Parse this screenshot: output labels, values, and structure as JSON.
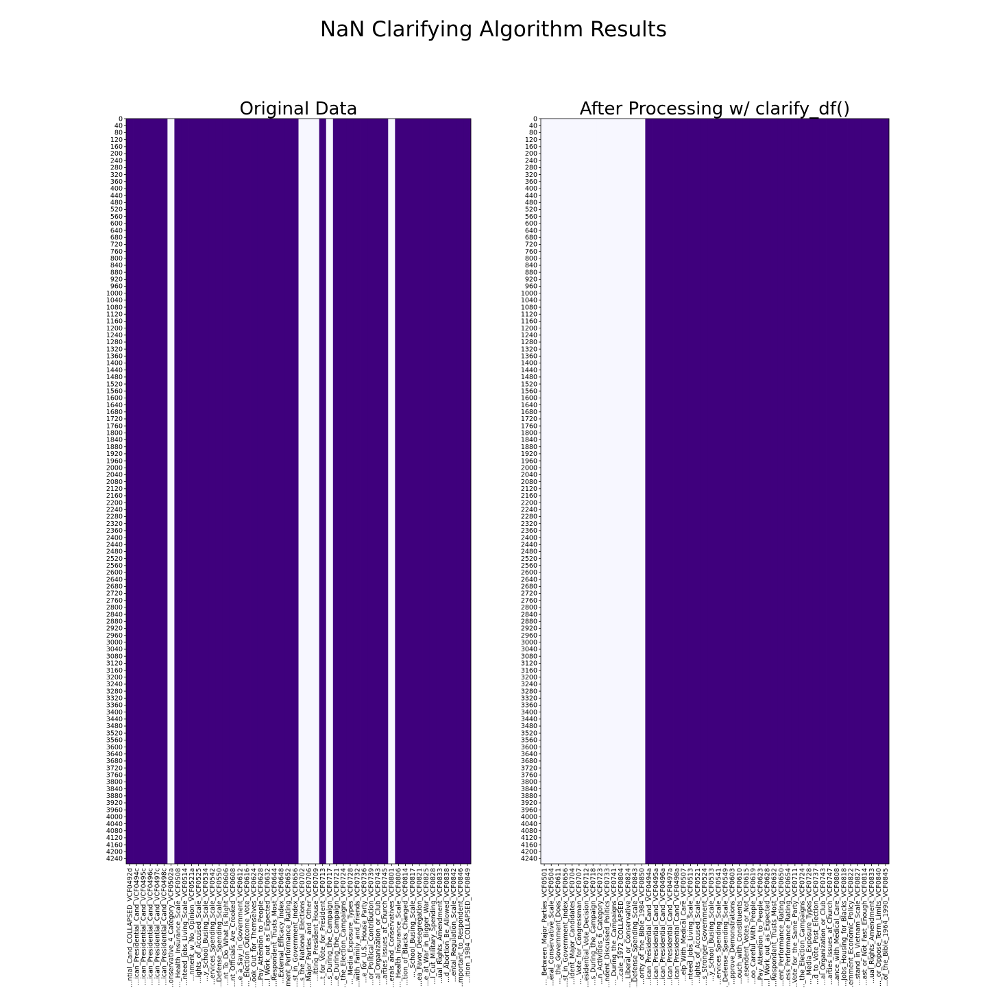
{
  "figure": {
    "title": "NaN Clarifying Algorithm Results"
  },
  "colors": {
    "missing": "#f7f7ff",
    "present": "#3f007d",
    "frame": "#000000"
  },
  "chart_data": [
    {
      "type": "heatmap",
      "title": "Original Data",
      "ylim": [
        0,
        4270
      ],
      "y_ticks": [
        0,
        40,
        80,
        120,
        160,
        200,
        240,
        280,
        320,
        360,
        400,
        440,
        480,
        520,
        560,
        600,
        640,
        680,
        720,
        760,
        800,
        840,
        880,
        920,
        960,
        1000,
        1040,
        1080,
        1120,
        1160,
        1200,
        1240,
        1280,
        1320,
        1360,
        1400,
        1440,
        1480,
        1520,
        1560,
        1600,
        1640,
        1680,
        1720,
        1760,
        1800,
        1840,
        1880,
        1920,
        1960,
        2000,
        2040,
        2080,
        2120,
        2160,
        2200,
        2240,
        2280,
        2320,
        2360,
        2400,
        2440,
        2480,
        2520,
        2560,
        2600,
        2640,
        2680,
        2720,
        2760,
        2800,
        2840,
        2880,
        2920,
        2960,
        3000,
        3040,
        3080,
        3120,
        3160,
        3200,
        3240,
        3280,
        3320,
        3360,
        3400,
        3440,
        3480,
        3520,
        3560,
        3600,
        3640,
        3680,
        3720,
        3760,
        3800,
        3840,
        3880,
        3920,
        3960,
        4000,
        4040,
        4080,
        4120,
        4160,
        4200,
        4240
      ],
      "x_labels": [
        "...ntial_Cand_COLLAPSED_VCF0492d",
        "...ican_Presidential_Cand_VCF0494c",
        "...ican_Presidential_Cand_VCF0495c",
        "...ican_Presidential_Cand_VCF0496c",
        "...ican_Presidential_Cand_VCF0497c",
        "...ican_Presidential_Cand_VCF0498c",
        "...onservative_4_Category_VCF0502a",
        "..._Health_Insurance_Scale_VCF0508",
        "...nteed_Jobs_Living_Scale_VCF0514",
        "...nment_w_No_Opinion_VCF0521a",
        "...ights_of_Accused_Scale_VCF0525",
        "...y_School_Busing_Scale_VCF0534",
        "...ervices_Spending_Scale_VCF0542",
        "...Defense_Spending_Scale_VCF0550",
        "...nt_To_Do_What_Is_Right_VCF0606",
        "...nt_Officials_Are_Crooked_VCF0608",
        "...e_a_Say_in_Government_VCF0612",
        "..._Election_Outcome_Vote_VCF0616",
        "...ook_Out_for_Themselves_VCF0624",
        "...Pay_Attention_to_People_VCF0628",
        "...l_Work_out_as_Expected_VCF0632",
        "...Respondent_Trusts_Most_VCF0644",
        "...External_Efficacy_Index_VCF0648",
        "...ment_Performance_Rating_VCF0652",
        "...st_in_Government_Index_VCF0656",
        "...s_the_National_Elections_VCF0702",
        "...Major_Parties_and_Other_VCF0706",
        "...itting_President_House_VCF0709",
        "...t_for_Vote_for_President_VCF0713",
        "...s_During_the_Campaign_VCF0717",
        "...e_During_the_Campaign_VCF0721",
        "..._the_Election_Campaigns_VCF0724",
        "..._Media_Exposure_Types_VCF0728",
        "...with_Family_and_Friends_VCF0732",
        "...e_for_U.S._House_Party_VCF0736",
        "...or_Political_Contribution_VCF0739",
        "...al_Organization_or_Club_VCF0743",
        "...arties_Issues_at_Church_VCF0745",
        "...erals_and_Conservatives_VCF0801",
        "..._Health_Insurance_Scale_VCF0806",
        "...tion_of_Blacks_Changed_VCF0814",
        "..._School_Busing_Scale_VCF0817",
        "...ea_Favor_Desegregation_VCF0821",
        "...e_at_War_in_Bigger_War_VCF0825",
        "...l_Cut_Military_Spending_VCF0828",
        "...ual_Rights_Amendment_VCF0833",
        "...d_Abortion_Be_Allowed_VCF0838",
        "...ental_Regulation_Scale_VCF0842",
        "...mportant_to_Respondent_VCF0846",
        "...ition_1984_COLLAPSED_VCF0849"
      ],
      "present_columns": [
        1,
        1,
        1,
        1,
        1,
        1,
        0,
        1,
        1,
        1,
        1,
        1,
        1,
        1,
        1,
        1,
        1,
        1,
        1,
        1,
        1,
        1,
        1,
        1,
        1,
        0,
        0,
        0,
        1,
        0,
        1,
        1,
        1,
        1,
        1,
        1,
        1,
        1,
        0,
        1,
        1,
        1,
        1,
        1,
        1,
        1,
        1,
        1,
        1,
        1
      ]
    },
    {
      "type": "heatmap",
      "title": "After Processing w/ clarify_df()",
      "ylim": [
        0,
        4270
      ],
      "y_ticks": [
        0,
        40,
        80,
        120,
        160,
        200,
        240,
        280,
        320,
        360,
        400,
        440,
        480,
        520,
        560,
        600,
        640,
        680,
        720,
        760,
        800,
        840,
        880,
        920,
        960,
        1000,
        1040,
        1080,
        1120,
        1160,
        1200,
        1240,
        1280,
        1320,
        1360,
        1400,
        1440,
        1480,
        1520,
        1560,
        1600,
        1640,
        1680,
        1720,
        1760,
        1800,
        1840,
        1880,
        1920,
        1960,
        2000,
        2040,
        2080,
        2120,
        2160,
        2200,
        2240,
        2280,
        2320,
        2360,
        2400,
        2440,
        2480,
        2520,
        2560,
        2600,
        2640,
        2680,
        2720,
        2760,
        2800,
        2840,
        2880,
        2920,
        2960,
        3000,
        3040,
        3080,
        3120,
        3160,
        3200,
        3240,
        3280,
        3320,
        3360,
        3400,
        3440,
        3480,
        3520,
        3560,
        3600,
        3640,
        3680,
        3720,
        3760,
        3800,
        3840,
        3880,
        3920,
        3960,
        4000,
        4040,
        4080,
        4120,
        4160,
        4200,
        4240
      ],
      "x_labels": [
        "..._Between_Major_Parties_VCF0501",
        "...eral_Conservative_Scale_VCF0504",
        "..._the_Government_Does_VCF0611",
        "...st_in_Government_Index_VCF0656",
        "...ident_Major_Candidates_VCF0704",
        "..._Vote_for_Congressman_VCF0707",
        "...esidential_Vote_Decision_VCF0712",
        "...s_During_the_Campaign_VCF0718",
        "...n_Activities_6_Category_VCF0723",
        "...ndent_Discussed_Politics_VCF0733",
        "..._During_the_Campaigns_VCF0741",
        "...cale_1972_COLLAPSED_VCF0804",
        "..._Liberal_or_Conservative_VCF0824",
        "...Defense_Spending_Scale_VCF0843",
        "...ority_of_the_Bible_1984_VCF0850",
        "...ican_Presidential_Cand_VCF0494a",
        "...ican_Presidential_Cand_VCF0495a",
        "...ican_Presidential_Cand_VCF0496a",
        "...ican_Presidential_Cand_VCF0497a",
        "...ican_Presidential_Cand_VCF0498a",
        "...elp_With_Medical_Care_VCF0507",
        "...nteed_Jobs_Living_Scale_VCF0513",
        "...ights_of_Accused_Scale_VCF0521",
        "...s_Stronger_Government_VCF0524",
        "...y_School_Busing_Scale_VCF0533",
        "...ervices_Spending_Scale_VCF0541",
        "..._Defense_Spending_Scale_VCF0549",
        "...pprove_Demonstrations_VCF0603",
        "...ouch_with_Constituents_VCF0610",
        "...esendent_Votes_or_Not_VCF0615",
        "...oo_Careful_With_People_VCF0619",
        "...Pay_Attention_to_People_VCF0623",
        "...l_Work_out_as_Expected_VCF0628",
        "...Respondent_Trusts_Most_VCF0632",
        "...ent_Performance_Rating_VCF0650",
        "...ess_Performance_Rating_VCF0654",
        "...Vote_for_the_Same_Party_VCF0711",
        "..._the_Election_Campaigns_VCF0724",
        "..._Media_Exposure_Types_VCF0728",
        "...d_to_Vote_Post_Election_VCF0737",
        "...al_Organization_or_Club_VCF0743",
        "...arties_Issues_at_Church_VCF0747",
        "...ance_with_Medical_Care_VCF0808",
        "...Jobs_Housing_for_Blacks_VCF0818",
        "...ernment_Economic_Policy_VCF0822",
        "...stand_in_Vietnam_Scale_VCF0827",
        "...ast_or_Not_Fast_Enough_VCF0814",
        "...ual_Rights_Amendment_VCF0833",
        "..._or_Oppose_Term_Limits_VCF0840",
        "...of_the_Bible_1964_1990_VCF0845"
      ],
      "present_columns": [
        0,
        0,
        0,
        0,
        0,
        0,
        0,
        0,
        0,
        0,
        0,
        0,
        0,
        0,
        0,
        1,
        1,
        1,
        1,
        1,
        1,
        1,
        1,
        1,
        1,
        1,
        1,
        1,
        1,
        1,
        1,
        1,
        1,
        1,
        1,
        1,
        1,
        1,
        1,
        1,
        1,
        1,
        1,
        1,
        1,
        1,
        1,
        1,
        1,
        1
      ]
    }
  ]
}
